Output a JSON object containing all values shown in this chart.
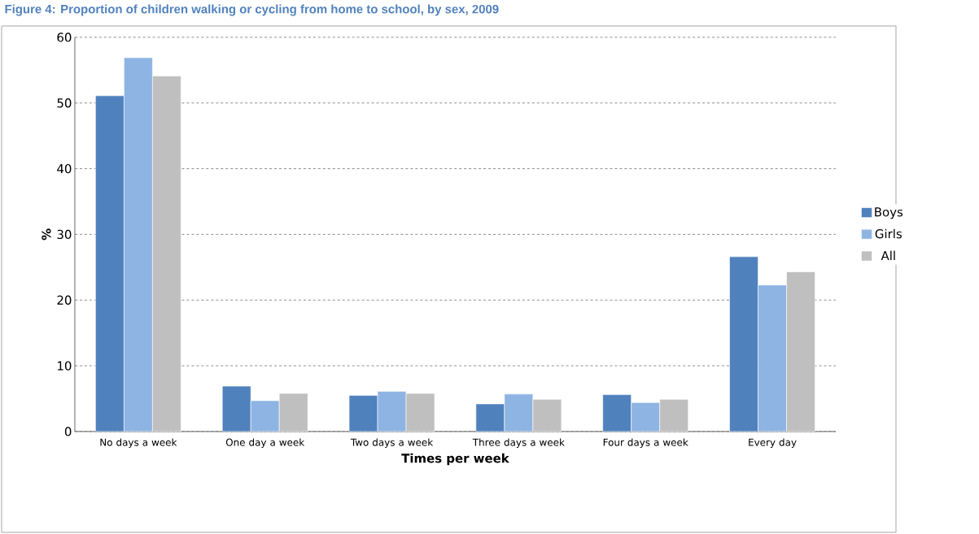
{
  "chart_data": {
    "type": "bar",
    "title": "Figure 4: Proportion of children walking or cycling from home to school, by sex, 2009",
    "xlabel": "Times per week",
    "ylabel": "%",
    "categories": [
      "No days a week",
      "One day a week",
      "Two days a week",
      "Three days a week",
      "Four days a week",
      "Every day"
    ],
    "series": [
      {
        "name": "Boys",
        "color": "#4f81bd",
        "values": [
          51.1,
          6.9,
          5.5,
          4.2,
          5.6,
          26.6
        ]
      },
      {
        "name": "Girls",
        "color": "#8eb4e3",
        "values": [
          56.9,
          4.7,
          6.1,
          5.7,
          4.4,
          22.3
        ]
      },
      {
        "name": "All",
        "color": "#bfbfbf",
        "values": [
          54.1,
          5.8,
          5.8,
          4.9,
          4.9,
          24.3
        ]
      }
    ],
    "ylim": [
      0,
      60
    ],
    "yticks": [
      0,
      10,
      20,
      30,
      40,
      50,
      60
    ],
    "grid": "y",
    "legend": "right"
  }
}
